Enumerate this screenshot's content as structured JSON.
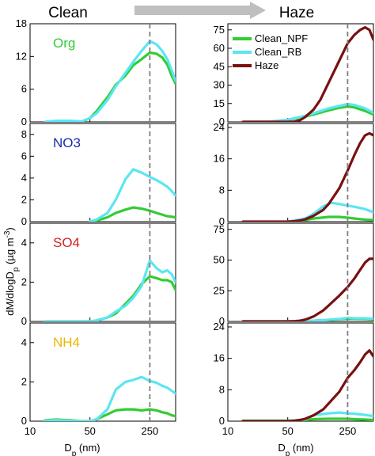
{
  "header": {
    "left": "Clean",
    "right": "Haze",
    "arrow_color": "#bfbfbf"
  },
  "ylabel": "dM/dlogD",
  "ylabel_sub": "p",
  "ylabel_unit": " (µg m",
  "ylabel_sup": "-3",
  "ylabel_close": ")",
  "xlabel": "D",
  "xlabel_sub": "p",
  "xlabel_unit": " (nm)",
  "xticks": [
    "10",
    "50",
    "250"
  ],
  "reference_line_nm": 250,
  "colors": {
    "Clean_NPF": "#33cc33",
    "Clean_RB": "#5ce6f2",
    "Haze": "#7a1010"
  },
  "legend": [
    "Clean_NPF",
    "Clean_RB",
    "Haze"
  ],
  "chart_data": [
    {
      "type": "line",
      "panel": "Clean-Org",
      "species": "Org",
      "species_color": "#33cc33",
      "xscale": "log",
      "xlim": [
        10,
        500
      ],
      "ylim": [
        0,
        18
      ],
      "yticks": [
        0,
        6,
        12,
        18
      ],
      "series": [
        {
          "name": "Clean_NPF",
          "x": [
            15,
            20,
            30,
            40,
            50,
            60,
            80,
            100,
            130,
            160,
            200,
            250,
            300,
            350,
            400,
            450,
            500
          ],
          "y": [
            0,
            0.1,
            0.1,
            0,
            0.7,
            2,
            4.5,
            6.8,
            8.5,
            10.4,
            11.5,
            12.7,
            12.5,
            11.8,
            10.5,
            8.5,
            7
          ]
        },
        {
          "name": "Clean_RB",
          "x": [
            15,
            20,
            30,
            40,
            50,
            60,
            80,
            100,
            130,
            160,
            200,
            250,
            300,
            350,
            400,
            450,
            500
          ],
          "y": [
            0,
            0.2,
            0.2,
            0.1,
            0.7,
            1.6,
            4,
            6.5,
            9,
            11,
            13,
            14.8,
            14.2,
            13,
            11.5,
            9.5,
            7.5
          ]
        }
      ]
    },
    {
      "type": "line",
      "panel": "Haze-Org",
      "xscale": "log",
      "xlim": [
        10,
        500
      ],
      "ylim": [
        0,
        80
      ],
      "yticks": [
        0,
        15,
        30,
        45,
        60,
        75
      ],
      "series": [
        {
          "name": "Clean_NPF",
          "x": [
            15,
            30,
            50,
            70,
            100,
            150,
            200,
            250,
            300,
            400,
            500
          ],
          "y": [
            0,
            0.2,
            1.5,
            3.5,
            6,
            9.5,
            11.5,
            12.5,
            11.8,
            9,
            6
          ]
        },
        {
          "name": "Clean_RB",
          "x": [
            15,
            30,
            50,
            70,
            100,
            150,
            200,
            250,
            300,
            400,
            500
          ],
          "y": [
            0,
            0.2,
            1.8,
            4,
            7,
            11,
            13,
            14.5,
            13.8,
            11,
            7.5
          ]
        },
        {
          "name": "Haze",
          "x": [
            15,
            30,
            50,
            60,
            70,
            80,
            100,
            120,
            150,
            200,
            250,
            300,
            350,
            400,
            450,
            500
          ],
          "y": [
            0,
            0,
            0,
            0.2,
            1.5,
            4,
            10,
            18,
            32,
            50,
            64,
            71,
            75,
            77,
            75,
            67
          ]
        }
      ]
    },
    {
      "type": "line",
      "panel": "Clean-NO3",
      "species": "NO3",
      "species_color": "#1a2aa8",
      "xscale": "log",
      "xlim": [
        10,
        500
      ],
      "ylim": [
        0,
        9
      ],
      "yticks": [
        0,
        2,
        4,
        6,
        8
      ],
      "series": [
        {
          "name": "Clean_NPF",
          "x": [
            50,
            60,
            80,
            100,
            130,
            160,
            200,
            250,
            300,
            400,
            500
          ],
          "y": [
            0,
            0.1,
            0.4,
            0.8,
            1.1,
            1.3,
            1.2,
            1.0,
            0.8,
            0.5,
            0.4
          ]
        },
        {
          "name": "Clean_RB",
          "x": [
            50,
            60,
            80,
            100,
            130,
            160,
            200,
            250,
            300,
            350,
            400,
            450,
            500
          ],
          "y": [
            0,
            0.2,
            0.8,
            2,
            3.9,
            4.8,
            4.5,
            4.1,
            3.8,
            3.5,
            3.2,
            2.8,
            2.4
          ]
        }
      ]
    },
    {
      "type": "line",
      "panel": "Haze-NO3",
      "xscale": "log",
      "xlim": [
        10,
        500
      ],
      "ylim": [
        0,
        25
      ],
      "yticks": [
        0,
        8,
        16,
        24
      ],
      "series": [
        {
          "name": "Clean_NPF",
          "x": [
            50,
            80,
            100,
            150,
            200,
            250,
            300,
            400,
            500
          ],
          "y": [
            0,
            0.4,
            0.8,
            1.2,
            1.2,
            1.0,
            0.8,
            0.5,
            0.4
          ]
        },
        {
          "name": "Clean_RB",
          "x": [
            50,
            80,
            100,
            130,
            160,
            200,
            250,
            300,
            400,
            500
          ],
          "y": [
            0,
            0.8,
            2,
            3.9,
            4.8,
            4.5,
            4.1,
            3.8,
            3.2,
            2.4
          ]
        },
        {
          "name": "Haze",
          "x": [
            15,
            30,
            50,
            60,
            70,
            80,
            100,
            130,
            150,
            200,
            250,
            300,
            350,
            400,
            450,
            500
          ],
          "y": [
            0,
            0,
            0,
            0.1,
            0.3,
            0.6,
            1.5,
            3,
            4.5,
            8.5,
            13,
            17,
            20,
            22,
            22.5,
            22
          ]
        }
      ]
    },
    {
      "type": "line",
      "panel": "Clean-SO4",
      "species": "SO4",
      "species_color": "#d42020",
      "xscale": "log",
      "xlim": [
        10,
        500
      ],
      "ylim": [
        0,
        5
      ],
      "yticks": [
        0,
        2,
        4
      ],
      "series": [
        {
          "name": "Clean_NPF",
          "x": [
            15,
            20,
            30,
            40,
            50,
            60,
            80,
            100,
            130,
            160,
            200,
            250,
            300,
            350,
            400,
            450,
            500
          ],
          "y": [
            0,
            0,
            0,
            0,
            0,
            0.05,
            0.2,
            0.4,
            0.9,
            1.3,
            1.9,
            2.3,
            2.2,
            2.1,
            2.1,
            2.0,
            1.6
          ]
        },
        {
          "name": "Clean_RB",
          "x": [
            15,
            20,
            30,
            40,
            50,
            60,
            80,
            100,
            130,
            160,
            200,
            250,
            300,
            350,
            400,
            450,
            500
          ],
          "y": [
            0,
            0,
            0,
            0,
            0,
            0.05,
            0.2,
            0.5,
            0.8,
            1.2,
            1.8,
            3.1,
            2.7,
            2.5,
            2.6,
            2.4,
            2.0
          ]
        }
      ]
    },
    {
      "type": "line",
      "panel": "Haze-SO4",
      "xscale": "log",
      "xlim": [
        10,
        500
      ],
      "ylim": [
        0,
        80
      ],
      "yticks": [
        0,
        25,
        50,
        75
      ],
      "series": [
        {
          "name": "Clean_NPF",
          "x": [
            15,
            50,
            80,
            100,
            150,
            200,
            250,
            300,
            400,
            500
          ],
          "y": [
            0,
            0,
            0.3,
            0.6,
            1.2,
            1.8,
            2.2,
            2.1,
            2,
            1.6
          ]
        },
        {
          "name": "Clean_RB",
          "x": [
            15,
            50,
            80,
            100,
            150,
            200,
            250,
            300,
            400,
            500
          ],
          "y": [
            0,
            0,
            0.3,
            0.6,
            1.3,
            2,
            3,
            2.6,
            2.5,
            2.1
          ]
        },
        {
          "name": "Haze",
          "x": [
            15,
            30,
            50,
            60,
            70,
            80,
            100,
            130,
            150,
            200,
            250,
            300,
            350,
            400,
            450,
            500
          ],
          "y": [
            0,
            0,
            0,
            0.2,
            0.6,
            1.5,
            4,
            9,
            13,
            21,
            28,
            35,
            42,
            48,
            51,
            51
          ]
        }
      ]
    },
    {
      "type": "line",
      "panel": "Clean-NH4",
      "species": "NH4",
      "species_color": "#e8b800",
      "xscale": "log",
      "xlim": [
        10,
        500
      ],
      "ylim": [
        0,
        5
      ],
      "yticks": [
        0,
        2,
        4
      ],
      "series": [
        {
          "name": "Clean_NPF",
          "x": [
            15,
            20,
            30,
            40,
            50,
            60,
            80,
            100,
            130,
            160,
            200,
            250,
            300,
            350,
            400,
            450,
            500
          ],
          "y": [
            0.05,
            0.08,
            0.05,
            0,
            0,
            0.1,
            0.35,
            0.55,
            0.6,
            0.6,
            0.55,
            0.6,
            0.55,
            0.45,
            0.4,
            0.3,
            0.25
          ]
        },
        {
          "name": "Clean_RB",
          "x": [
            15,
            20,
            30,
            40,
            50,
            60,
            80,
            100,
            130,
            160,
            200,
            250,
            300,
            350,
            400,
            450,
            500
          ],
          "y": [
            0.02,
            0.05,
            0.02,
            0,
            0,
            0.1,
            0.6,
            1.6,
            2,
            2.1,
            2.25,
            2.05,
            1.95,
            1.8,
            1.7,
            1.55,
            1.4
          ]
        }
      ]
    },
    {
      "type": "line",
      "panel": "Haze-NH4",
      "xscale": "log",
      "xlim": [
        10,
        500
      ],
      "ylim": [
        0,
        25
      ],
      "yticks": [
        0,
        8,
        16,
        24
      ],
      "series": [
        {
          "name": "Clean_NPF",
          "x": [
            15,
            50,
            80,
            100,
            150,
            200,
            250,
            300,
            400,
            500
          ],
          "y": [
            0.1,
            0.1,
            0.3,
            0.5,
            0.6,
            0.6,
            0.6,
            0.5,
            0.4,
            0.3
          ]
        },
        {
          "name": "Clean_RB",
          "x": [
            15,
            50,
            80,
            100,
            150,
            200,
            250,
            300,
            400,
            500
          ],
          "y": [
            0,
            0,
            0.5,
            1.5,
            2,
            2.2,
            2.0,
            1.9,
            1.6,
            1.3
          ]
        },
        {
          "name": "Haze",
          "x": [
            15,
            30,
            50,
            60,
            70,
            80,
            100,
            130,
            150,
            200,
            250,
            300,
            350,
            400,
            450,
            500
          ],
          "y": [
            0,
            0,
            0,
            0.1,
            0.3,
            0.6,
            1.5,
            3,
            4.5,
            7.5,
            11,
            13,
            15,
            17,
            18,
            16.5
          ]
        }
      ]
    }
  ]
}
